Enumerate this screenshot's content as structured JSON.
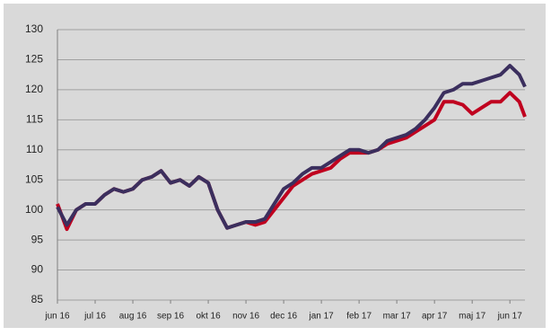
{
  "chart_data": {
    "type": "line",
    "x": [
      0,
      0.25,
      0.5,
      0.75,
      1,
      1.25,
      1.5,
      1.75,
      2,
      2.25,
      2.5,
      2.75,
      3,
      3.25,
      3.5,
      3.75,
      4,
      4.25,
      4.5,
      4.75,
      5,
      5.25,
      5.5,
      5.75,
      6,
      6.25,
      6.5,
      6.75,
      7,
      7.25,
      7.5,
      7.75,
      8,
      8.25,
      8.5,
      8.75,
      9,
      9.25,
      9.5,
      9.75,
      10,
      10.25,
      10.5,
      10.75,
      11,
      11.25,
      11.5,
      11.75,
      12,
      12.25,
      12.4
    ],
    "series": [
      {
        "color": "#c0001f",
        "values": [
          101,
          96.8,
          100,
          101,
          101,
          102.5,
          103.5,
          103,
          103.5,
          105,
          105.5,
          106.5,
          104.5,
          105,
          104,
          105.5,
          104.5,
          100,
          97,
          97.5,
          98,
          97.5,
          98,
          100,
          102,
          104,
          105,
          106,
          106.5,
          107,
          108.5,
          109.5,
          109.5,
          109.5,
          110,
          111,
          111.5,
          112,
          113,
          114,
          115,
          118,
          118,
          117.5,
          116,
          117,
          118,
          118,
          119.5,
          118,
          115.5
        ]
      },
      {
        "color": "#3b2f5e",
        "values": [
          100.5,
          97.5,
          100,
          101,
          101,
          102.5,
          103.5,
          103,
          103.5,
          105,
          105.5,
          106.5,
          104.5,
          105,
          104,
          105.5,
          104.5,
          100,
          97,
          97.5,
          98,
          98,
          98.5,
          101,
          103.5,
          104.5,
          106,
          107,
          107,
          108,
          109,
          110,
          110,
          109.5,
          110,
          111.5,
          112,
          112.5,
          113.5,
          115,
          117,
          119.5,
          120,
          121,
          121,
          121.5,
          122,
          122.5,
          124,
          122.5,
          120.5
        ]
      }
    ],
    "xlim": [
      0,
      12.4
    ],
    "xticks": [
      {
        "value": 0,
        "label": "jun 16"
      },
      {
        "value": 1,
        "label": "jul 16"
      },
      {
        "value": 2,
        "label": "aug 16"
      },
      {
        "value": 3,
        "label": "sep 16"
      },
      {
        "value": 4,
        "label": "okt 16"
      },
      {
        "value": 5,
        "label": "nov 16"
      },
      {
        "value": 6,
        "label": "dec 16"
      },
      {
        "value": 7,
        "label": "jan 17"
      },
      {
        "value": 8,
        "label": "feb 17"
      },
      {
        "value": 9,
        "label": "mar 17"
      },
      {
        "value": 10,
        "label": "apr 17"
      },
      {
        "value": 11,
        "label": "maj 17"
      },
      {
        "value": 12,
        "label": "jun 17"
      }
    ],
    "ylim": [
      85,
      130
    ],
    "yticks": [
      85,
      90,
      95,
      100,
      105,
      110,
      115,
      120,
      125,
      130
    ],
    "grid": true
  }
}
